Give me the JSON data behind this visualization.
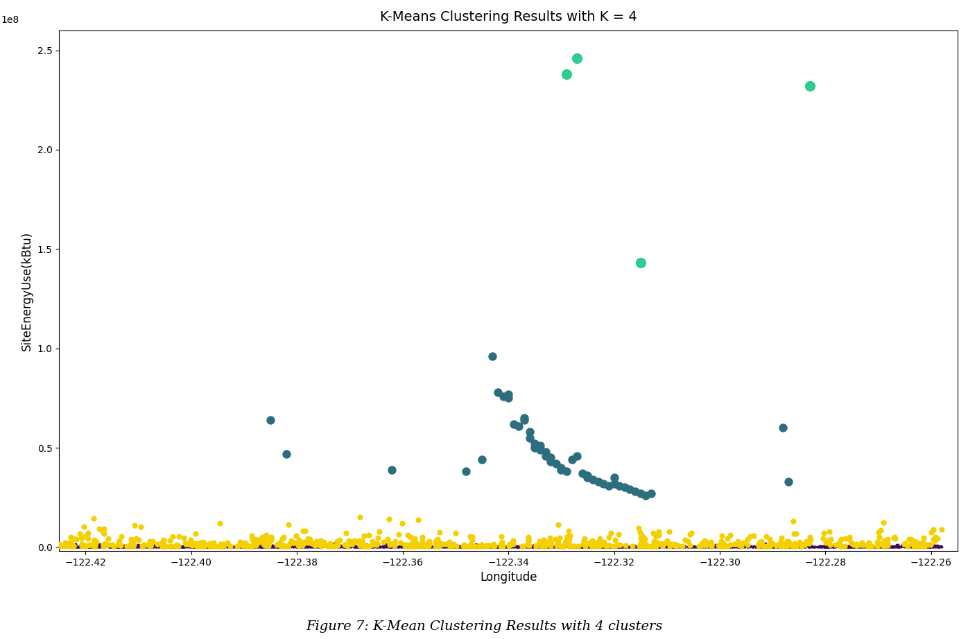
{
  "title": "K-Means Clustering Results with K = 4",
  "xlabel": "Longitude",
  "ylabel": "SiteEnergyUse(kBtu)",
  "xlim": [
    -122.425,
    -122.255
  ],
  "ylim": [
    -2000000.0,
    260000000.0
  ],
  "caption": "Figure 7: K-Mean Clustering Results with 4 clusters",
  "cluster_colors": [
    "#2ecc8e",
    "#2d6e7e",
    "#f5d000",
    "#3b0a5e"
  ],
  "green_points": {
    "lon": [
      -122.327,
      -122.329,
      -122.315,
      -122.283
    ],
    "energy": [
      246000000.0,
      238000000.0,
      143000000.0,
      232000000.0
    ]
  },
  "teal_points": {
    "lon": [
      -122.385,
      -122.382,
      -122.362,
      -122.348,
      -122.345,
      -122.343,
      -122.342,
      -122.341,
      -122.34,
      -122.34,
      -122.339,
      -122.338,
      -122.337,
      -122.337,
      -122.336,
      -122.336,
      -122.335,
      -122.335,
      -122.334,
      -122.334,
      -122.333,
      -122.333,
      -122.332,
      -122.332,
      -122.331,
      -122.33,
      -122.33,
      -122.329,
      -122.328,
      -122.327,
      -122.326,
      -122.325,
      -122.325,
      -122.324,
      -122.323,
      -122.322,
      -122.321,
      -122.32,
      -122.32,
      -122.319,
      -122.318,
      -122.317,
      -122.316,
      -122.315,
      -122.314,
      -122.313,
      -122.288,
      -122.287
    ],
    "energy": [
      64000000.0,
      47000000.0,
      39000000.0,
      38000000.0,
      44000000.0,
      96000000.0,
      78000000.0,
      76000000.0,
      77000000.0,
      75000000.0,
      62000000.0,
      61000000.0,
      65000000.0,
      64000000.0,
      58000000.0,
      55000000.0,
      52000000.0,
      50000000.0,
      49000000.0,
      51000000.0,
      48000000.0,
      46000000.0,
      45000000.0,
      43000000.0,
      42000000.0,
      40000000.0,
      39000000.0,
      38000000.0,
      44000000.0,
      46000000.0,
      37000000.0,
      36000000.0,
      35000000.0,
      34000000.0,
      33000000.0,
      32000000.0,
      31000000.0,
      35000000.0,
      32000000.0,
      31000000.0,
      30000000.0,
      29000000.0,
      28000000.0,
      27000000.0,
      26000000.0,
      27000000.0,
      60000000.0,
      33000000.0
    ]
  },
  "seed": 42
}
